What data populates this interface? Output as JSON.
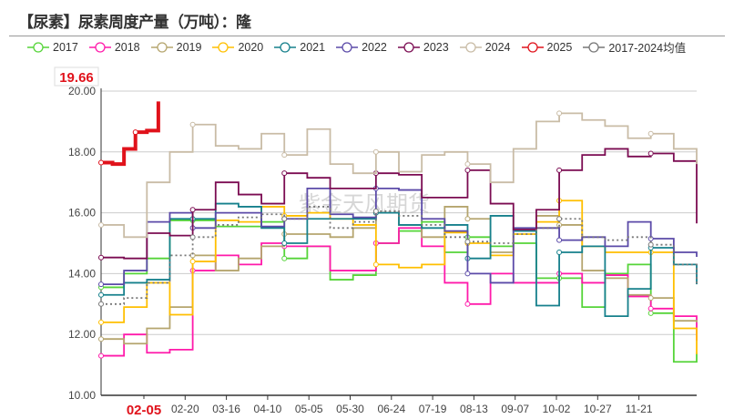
{
  "title": "【尿素】尿素周度产量（万吨）：隆",
  "watermark": "紫金天风期货",
  "hover": {
    "value_label": "19.66",
    "date_label": "02-05",
    "color": "#e0121b"
  },
  "chart_data": {
    "type": "line",
    "step": true,
    "title": "【尿素】尿素周度产量（万吨）：隆",
    "ylim": [
      10,
      20
    ],
    "yticks": [
      "10.00",
      "12.00",
      "14.00",
      "16.00",
      "18.00",
      "20.00"
    ],
    "xtick_labels": [
      "",
      "02-20",
      "03-16",
      "04-10",
      "05-05",
      "05-30",
      "06-24",
      "07-19",
      "08-13",
      "09-07",
      "10-02",
      "10-27",
      "11-21"
    ],
    "grid": true,
    "legend_position": "top",
    "x_weeks": [
      0,
      2,
      4,
      6,
      8,
      10,
      12,
      14,
      16,
      18,
      20,
      22,
      24,
      26,
      28,
      30,
      32,
      34,
      36,
      38,
      40,
      42,
      44,
      46,
      48,
      50,
      52
    ],
    "series": [
      {
        "name": "2017",
        "color": "#55d438",
        "values": [
          13.55,
          14.0,
          14.5,
          15.75,
          15.75,
          15.55,
          15.55,
          15.7,
          14.5,
          14.9,
          13.8,
          13.95,
          15.0,
          15.4,
          15.7,
          14.7,
          15.2,
          14.9,
          15.0,
          13.85,
          13.85,
          12.9,
          14.0,
          14.3,
          12.7,
          11.1,
          11.4
        ]
      },
      {
        "name": "2018",
        "color": "#ff1aaa",
        "values": [
          11.3,
          12.0,
          11.4,
          11.5,
          14.1,
          14.6,
          14.3,
          15.0,
          14.9,
          14.9,
          14.1,
          14.1,
          15.0,
          15.5,
          14.9,
          13.7,
          13.0,
          14.0,
          13.7,
          13.7,
          14.0,
          13.7,
          13.95,
          13.25,
          12.85,
          12.6,
          11.8
        ]
      },
      {
        "name": "2019",
        "color": "#b5a56e",
        "values": [
          11.85,
          11.7,
          12.2,
          12.9,
          14.6,
          14.1,
          14.5,
          14.9,
          15.3,
          15.3,
          15.2,
          15.5,
          16.0,
          15.6,
          15.2,
          16.2,
          15.8,
          14.7,
          15.4,
          15.9,
          15.6,
          14.1,
          13.85,
          13.3,
          13.2,
          12.45,
          12.4
        ]
      },
      {
        "name": "2020",
        "color": "#ffbf00",
        "values": [
          12.4,
          12.9,
          13.7,
          12.65,
          14.4,
          15.75,
          15.7,
          16.2,
          15.9,
          16.0,
          15.8,
          15.6,
          14.3,
          14.2,
          14.3,
          15.35,
          15.0,
          14.6,
          15.3,
          15.7,
          16.4,
          14.9,
          14.7,
          14.7,
          14.7,
          12.2,
          11.35
        ]
      },
      {
        "name": "2021",
        "color": "#16808c",
        "values": [
          13.3,
          13.7,
          13.8,
          15.8,
          15.8,
          16.3,
          16.2,
          15.5,
          15.0,
          15.8,
          15.8,
          15.8,
          16.0,
          15.6,
          15.5,
          15.6,
          14.5,
          15.9,
          15.4,
          12.95,
          14.7,
          14.9,
          12.6,
          13.5,
          14.85,
          14.3,
          13.65
        ]
      },
      {
        "name": "2022",
        "color": "#5b4aa8",
        "values": [
          13.65,
          14.1,
          15.7,
          16.0,
          15.5,
          16.0,
          16.0,
          15.55,
          15.8,
          16.8,
          15.95,
          15.85,
          16.8,
          16.75,
          15.8,
          15.4,
          14.0,
          13.7,
          15.5,
          15.5,
          15.1,
          15.2,
          14.9,
          15.7,
          15.15,
          14.7,
          14.55
        ]
      },
      {
        "name": "2023",
        "color": "#7b0c52",
        "values": [
          14.53,
          14.5,
          15.33,
          15.25,
          16.1,
          17.0,
          16.6,
          16.3,
          17.3,
          17.15,
          16.8,
          16.8,
          17.3,
          17.25,
          16.5,
          16.5,
          17.4,
          16.3,
          15.45,
          16.1,
          17.4,
          17.9,
          18.1,
          17.85,
          17.95,
          17.7,
          15.65
        ]
      },
      {
        "name": "2024",
        "color": "#c9bca6",
        "values": [
          15.6,
          15.2,
          17.0,
          18.0,
          18.9,
          18.2,
          18.1,
          18.6,
          17.9,
          18.75,
          17.6,
          17.3,
          18.0,
          17.35,
          17.9,
          18.0,
          17.6,
          17.0,
          18.1,
          19.0,
          19.27,
          19.05,
          18.85,
          18.45,
          18.6,
          18.1,
          17.6
        ]
      },
      {
        "name": "2025",
        "color": "#e0121b",
        "x_weeks": [
          0,
          1,
          2,
          3,
          4,
          5
        ],
        "values": [
          17.65,
          17.6,
          18.1,
          18.65,
          18.7,
          19.66
        ]
      },
      {
        "name": "2017-2024均值",
        "color": "#777777",
        "dashed": true,
        "values": [
          13.0,
          13.2,
          13.7,
          14.6,
          15.2,
          15.6,
          15.85,
          15.95,
          15.8,
          16.2,
          15.5,
          15.7,
          16.05,
          15.9,
          15.6,
          15.2,
          15.05,
          15.0,
          15.3,
          15.5,
          15.8,
          15.2,
          15.1,
          15.2,
          14.95,
          14.3,
          13.6
        ]
      }
    ]
  }
}
